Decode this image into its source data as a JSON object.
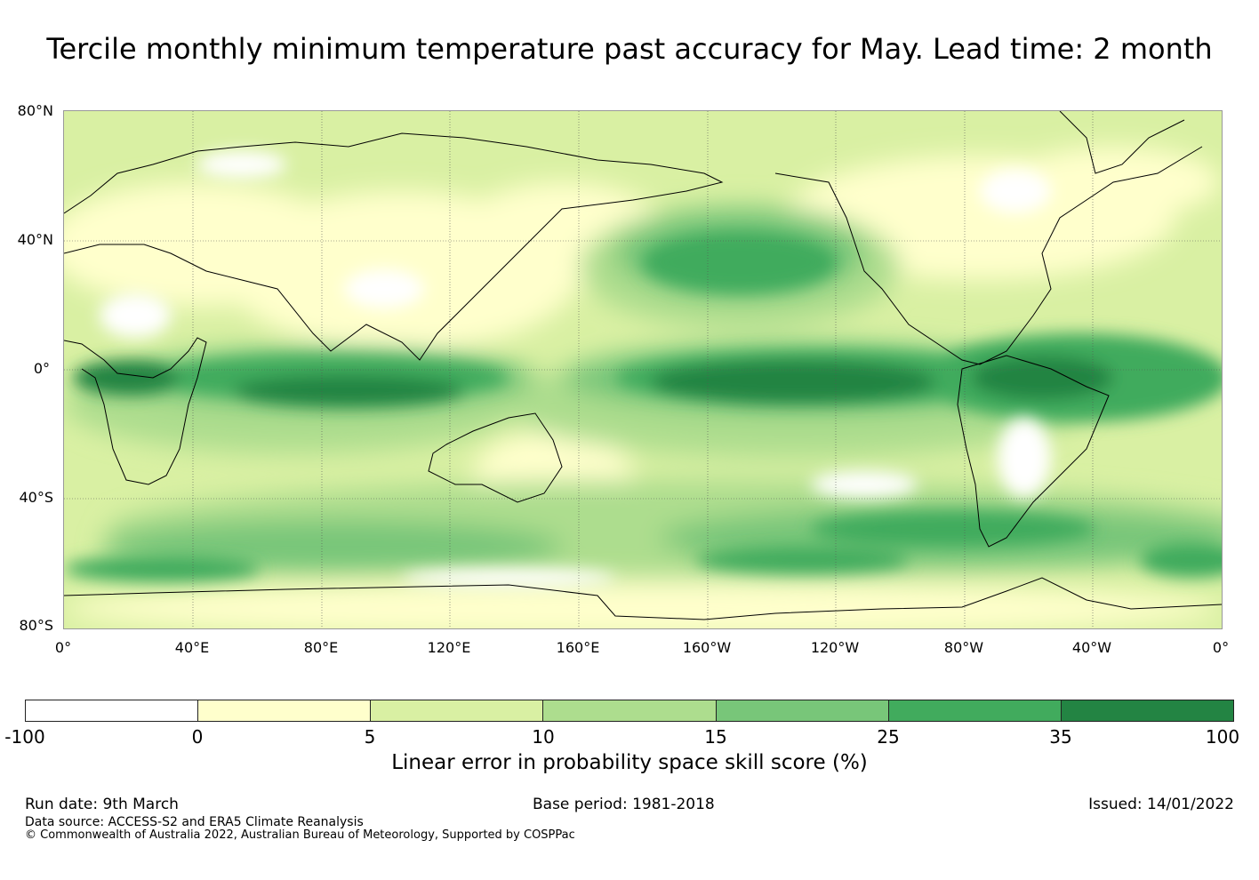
{
  "title": "Tercile monthly minimum temperature past accuracy for May. Lead time: 2 month",
  "map": {
    "lat_labels": [
      "80°N",
      "40°N",
      "0°",
      "40°S",
      "80°S"
    ],
    "lon_labels": [
      "0°",
      "40°E",
      "80°E",
      "120°E",
      "160°E",
      "160°W",
      "120°W",
      "80°W",
      "40°W",
      "0°"
    ]
  },
  "colorbar": {
    "label": "Linear error in probability space skill score (%)",
    "ticks": [
      "-100",
      "0",
      "5",
      "10",
      "15",
      "25",
      "35",
      "100"
    ],
    "colors": [
      "#ffffff",
      "#ffffcc",
      "#d9f0a3",
      "#addd8e",
      "#78c679",
      "#41ab5d",
      "#238443"
    ]
  },
  "footer": {
    "run_date": "Run date: 9th March",
    "base_period": "Base period: 1981-2018",
    "issued": "Issued: 14/01/2022",
    "data_source": "Data source: ACCESS-S2 and ERA5 Climate Reanalysis",
    "copyright": "© Commonwealth of Australia 2022, Australian Bureau of Meteorology, Supported by COSPPac"
  }
}
